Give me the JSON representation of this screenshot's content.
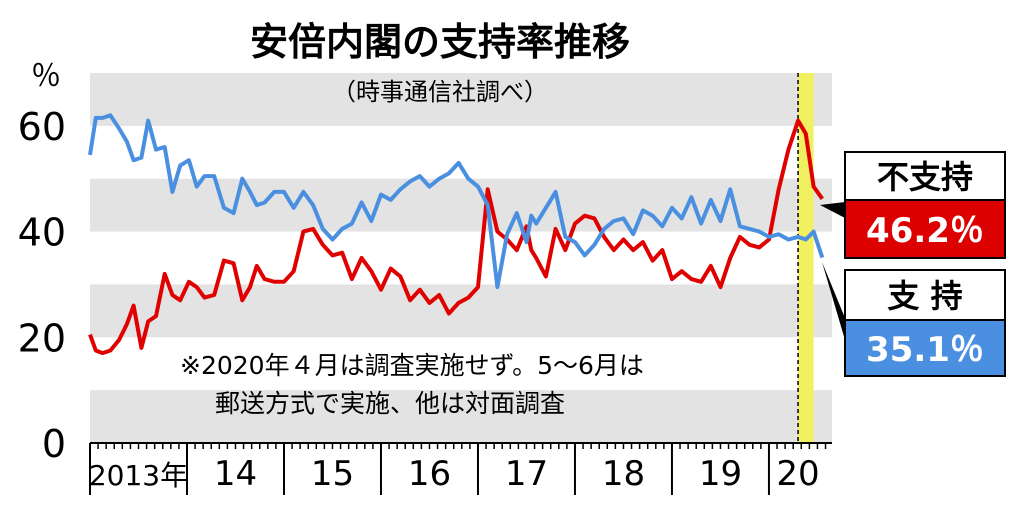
{
  "chart_data": {
    "type": "line",
    "title": "安倍内閣の支持率推移",
    "subtitle": "（時事通信社調べ）",
    "ylabel": "％",
    "ylim": [
      0,
      70
    ],
    "yticks": [
      0,
      20,
      40,
      60
    ],
    "xlim": [
      2013.0,
      2020.65
    ],
    "year_labels": [
      {
        "x": 2013.5,
        "label": "2013年"
      },
      {
        "x": 2014.5,
        "label": "14"
      },
      {
        "x": 2015.5,
        "label": "15"
      },
      {
        "x": 2016.5,
        "label": "16"
      },
      {
        "x": 2017.5,
        "label": "17"
      },
      {
        "x": 2018.5,
        "label": "18"
      },
      {
        "x": 2019.5,
        "label": "19"
      },
      {
        "x": 2020.3,
        "label": "20"
      }
    ],
    "note_lines": [
      "※2020年４月は調査実施せず。5～6月は",
      "郵送方式で実施、他は対面調査"
    ],
    "highlight": {
      "start": 2020.3,
      "end": 2020.46
    },
    "grid": true,
    "legend": "right",
    "colors": {
      "support": "#4a8fe0",
      "disapprove": "#e00000",
      "highlight": "#f0f060",
      "band": "#e3e3e3"
    },
    "series": [
      {
        "key": "support",
        "name": "支 持",
        "last_value": "35.1％",
        "x": [
          2013.0,
          2013.06,
          2013.13,
          2013.21,
          2013.3,
          2013.38,
          2013.45,
          2013.53,
          2013.6,
          2013.68,
          2013.77,
          2013.85,
          2013.93,
          2014.02,
          2014.1,
          2014.18,
          2014.28,
          2014.38,
          2014.48,
          2014.57,
          2014.65,
          2014.72,
          2014.8,
          2014.9,
          2015.0,
          2015.1,
          2015.2,
          2015.3,
          2015.4,
          2015.5,
          2015.6,
          2015.7,
          2015.8,
          2015.9,
          2016.0,
          2016.1,
          2016.2,
          2016.3,
          2016.4,
          2016.5,
          2016.6,
          2016.7,
          2016.8,
          2016.9,
          2017.0,
          2017.1,
          2017.2,
          2017.3,
          2017.4,
          2017.5,
          2017.55,
          2017.6,
          2017.7,
          2017.8,
          2017.9,
          2018.0,
          2018.1,
          2018.2,
          2018.3,
          2018.4,
          2018.5,
          2018.6,
          2018.7,
          2018.8,
          2018.9,
          2019.0,
          2019.1,
          2019.2,
          2019.3,
          2019.4,
          2019.5,
          2019.6,
          2019.7,
          2019.8,
          2019.9,
          2020.0,
          2020.1,
          2020.2,
          2020.3,
          2020.38,
          2020.46,
          2020.55
        ],
        "values": [
          54.5,
          61.5,
          61.5,
          62.0,
          59.5,
          57.0,
          53.5,
          54.0,
          61.0,
          55.5,
          56.0,
          47.5,
          52.5,
          53.5,
          48.5,
          50.5,
          50.5,
          44.5,
          43.5,
          50.0,
          47.5,
          45.0,
          45.5,
          47.5,
          47.5,
          44.5,
          47.5,
          45.0,
          40.5,
          38.5,
          40.5,
          41.5,
          45.5,
          42.0,
          47.0,
          46.0,
          48.0,
          49.5,
          50.5,
          48.5,
          50.0,
          51.0,
          53.0,
          50.0,
          48.5,
          45.0,
          29.5,
          39.5,
          43.5,
          38.0,
          43.0,
          41.5,
          44.5,
          47.5,
          39.0,
          38.0,
          35.5,
          37.5,
          40.5,
          42.0,
          42.5,
          39.5,
          44.0,
          43.0,
          41.0,
          44.5,
          42.5,
          46.5,
          41.5,
          46.0,
          42.0,
          48.0,
          41.0,
          40.5,
          40.0,
          39.0,
          39.5,
          38.5,
          39.0,
          38.5,
          40.0,
          35.1
        ]
      },
      {
        "key": "disapprove",
        "name": "不支持",
        "last_value": "46.2％",
        "x": [
          2013.0,
          2013.06,
          2013.13,
          2013.21,
          2013.3,
          2013.38,
          2013.45,
          2013.53,
          2013.6,
          2013.68,
          2013.77,
          2013.85,
          2013.93,
          2014.02,
          2014.1,
          2014.18,
          2014.28,
          2014.38,
          2014.48,
          2014.57,
          2014.65,
          2014.72,
          2014.8,
          2014.9,
          2015.0,
          2015.1,
          2015.2,
          2015.3,
          2015.4,
          2015.5,
          2015.6,
          2015.7,
          2015.8,
          2015.9,
          2016.0,
          2016.1,
          2016.2,
          2016.3,
          2016.4,
          2016.5,
          2016.6,
          2016.7,
          2016.8,
          2016.9,
          2017.0,
          2017.1,
          2017.2,
          2017.3,
          2017.4,
          2017.5,
          2017.55,
          2017.6,
          2017.7,
          2017.8,
          2017.9,
          2018.0,
          2018.1,
          2018.2,
          2018.3,
          2018.4,
          2018.5,
          2018.6,
          2018.7,
          2018.8,
          2018.9,
          2019.0,
          2019.1,
          2019.2,
          2019.3,
          2019.4,
          2019.5,
          2019.6,
          2019.7,
          2019.8,
          2019.9,
          2020.0,
          2020.1,
          2020.2,
          2020.3,
          2020.38,
          2020.46,
          2020.55
        ],
        "values": [
          20.5,
          17.5,
          17.0,
          17.5,
          19.5,
          22.5,
          26.0,
          18.0,
          23.0,
          24.0,
          32.0,
          28.0,
          27.0,
          30.5,
          29.5,
          27.5,
          28.0,
          34.5,
          34.0,
          27.0,
          29.5,
          33.5,
          31.0,
          30.5,
          30.5,
          32.5,
          40.0,
          40.5,
          37.5,
          35.5,
          36.0,
          31.0,
          35.0,
          32.5,
          29.0,
          33.0,
          31.5,
          27.0,
          29.0,
          26.5,
          28.0,
          24.5,
          26.5,
          27.5,
          29.5,
          48.0,
          40.0,
          38.5,
          36.5,
          41.0,
          36.5,
          35.0,
          31.5,
          40.5,
          36.5,
          41.5,
          43.0,
          42.5,
          39.0,
          36.5,
          38.5,
          36.5,
          38.0,
          34.5,
          36.5,
          31.0,
          32.5,
          31.0,
          30.5,
          33.5,
          29.5,
          35.0,
          39.0,
          37.5,
          37.0,
          38.5,
          48.0,
          55.5,
          61.0,
          58.5,
          48.5,
          46.2
        ]
      }
    ]
  }
}
